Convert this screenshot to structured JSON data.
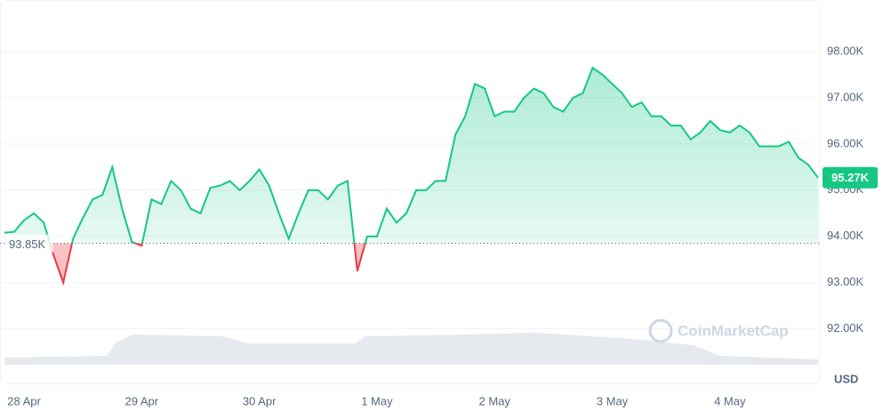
{
  "chart_data": {
    "type": "line",
    "categories": [
      null,
      null,
      "28 Apr",
      null,
      null,
      null,
      null,
      null,
      null,
      null,
      null,
      null,
      null,
      null,
      "29 Apr",
      null,
      null,
      null,
      null,
      null,
      null,
      null,
      null,
      null,
      null,
      null,
      "30 Apr",
      null,
      null,
      null,
      null,
      null,
      null,
      null,
      null,
      null,
      null,
      null,
      "1 May",
      null,
      null,
      null,
      null,
      null,
      null,
      null,
      null,
      null,
      null,
      null,
      "2 May",
      null,
      null,
      null,
      null,
      null,
      null,
      null,
      null,
      null,
      null,
      null,
      "3 May",
      null,
      null,
      null,
      null,
      null,
      null,
      null,
      null,
      null,
      null,
      null,
      "4 May",
      null,
      null,
      null,
      null,
      null,
      null,
      null,
      null,
      null
    ],
    "values": [
      94080,
      94100,
      94350,
      94500,
      94300,
      93600,
      93000,
      93950,
      94400,
      94800,
      94900,
      95500,
      94600,
      93880,
      93800,
      94800,
      94700,
      95200,
      95000,
      94600,
      94500,
      95050,
      95100,
      95200,
      95000,
      95200,
      95450,
      95100,
      94500,
      93950,
      94500,
      95000,
      95000,
      94800,
      95100,
      95200,
      93250,
      94000,
      94000,
      94600,
      94300,
      94500,
      95000,
      95000,
      95200,
      95200,
      96200,
      96600,
      97300,
      97200,
      96600,
      96700,
      96700,
      97000,
      97200,
      97100,
      96800,
      96700,
      97000,
      97100,
      97650,
      97500,
      97300,
      97100,
      96800,
      96900,
      96600,
      96600,
      96400,
      96400,
      96100,
      96250,
      96500,
      96300,
      96250,
      96400,
      96250,
      95950,
      95950,
      95950,
      96050,
      95700,
      95550,
      95270
    ],
    "value_labels": [
      null,
      null,
      null,
      null,
      null,
      null,
      null,
      null,
      null,
      null,
      null,
      null,
      null,
      null,
      null,
      null,
      null,
      null,
      null,
      null,
      null,
      null,
      null,
      null,
      null,
      null,
      null,
      null,
      null,
      null,
      null,
      null,
      null,
      null,
      null,
      null,
      null,
      null,
      null,
      null,
      null,
      null,
      null,
      null,
      null,
      null,
      null,
      null,
      null,
      null,
      null,
      null,
      null,
      null,
      null,
      null,
      null,
      null,
      null,
      null,
      null,
      null,
      null,
      null,
      null,
      null,
      null,
      null,
      null,
      null,
      null,
      null,
      null,
      null,
      null,
      null,
      null,
      null,
      null,
      null,
      null,
      null,
      null,
      "95.27K"
    ],
    "color": "#16c784",
    "below_color": "#ea3943",
    "baseline": {
      "value": 93850,
      "label": "93.85K"
    },
    "ylim": [
      90800,
      99000
    ],
    "yticks": [
      {
        "value": 92000,
        "label": "92.00K"
      },
      {
        "value": 93000,
        "label": "93.00K"
      },
      {
        "value": 94000,
        "label": "94.00K"
      },
      {
        "value": 95000,
        "label": "95.00K"
      },
      {
        "value": 96000,
        "label": "96.00K"
      },
      {
        "value": 97000,
        "label": "97.00K"
      },
      {
        "value": 98000,
        "label": "98.00K"
      }
    ],
    "grid": true,
    "currency": "USD",
    "watermark": "CoinMarketCap"
  }
}
